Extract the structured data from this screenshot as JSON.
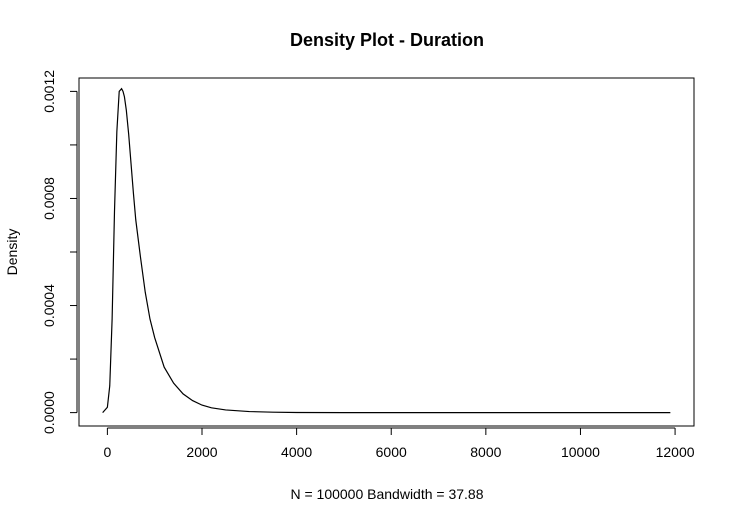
{
  "chart_data": {
    "type": "line",
    "title": "Density Plot - Duration",
    "xlabel": "N = 100000   Bandwidth = 37.88",
    "ylabel": "Density",
    "xlim": [
      -600,
      12400
    ],
    "ylim": [
      -5e-05,
      0.00125
    ],
    "x_ticks": [
      0,
      2000,
      4000,
      6000,
      8000,
      10000,
      12000
    ],
    "x_tick_labels": [
      "0",
      "2000",
      "4000",
      "6000",
      "8000",
      "10000",
      "12000"
    ],
    "y_ticks": [
      0,
      0.0002,
      0.0004,
      0.0006,
      0.0008,
      0.001,
      0.0012
    ],
    "y_tick_labels": [
      "0.0000",
      "",
      "0.0004",
      "",
      "0.0008",
      "",
      "0.0012"
    ],
    "grid": false,
    "legend": "none",
    "series": [
      {
        "color": "#000000",
        "x": [
          -100,
          0,
          50,
          100,
          150,
          200,
          250,
          300,
          330,
          360,
          400,
          450,
          500,
          550,
          600,
          700,
          800,
          900,
          1000,
          1200,
          1400,
          1600,
          1800,
          2000,
          2200,
          2500,
          3000,
          3500,
          4000,
          5000,
          6000,
          8000,
          10000,
          11900
        ],
        "y": [
          0.0,
          2e-05,
          0.0001,
          0.00035,
          0.00075,
          0.00105,
          0.0012,
          0.00121,
          0.0012,
          0.00118,
          0.00113,
          0.00104,
          0.00093,
          0.00082,
          0.00072,
          0.00058,
          0.00045,
          0.00035,
          0.00028,
          0.00017,
          0.00011,
          7e-05,
          4.5e-05,
          2.8e-05,
          1.8e-05,
          1e-05,
          4e-06,
          1.5e-06,
          5e-07,
          1e-07,
          0.0,
          0.0,
          0.0,
          0.0
        ]
      }
    ]
  }
}
